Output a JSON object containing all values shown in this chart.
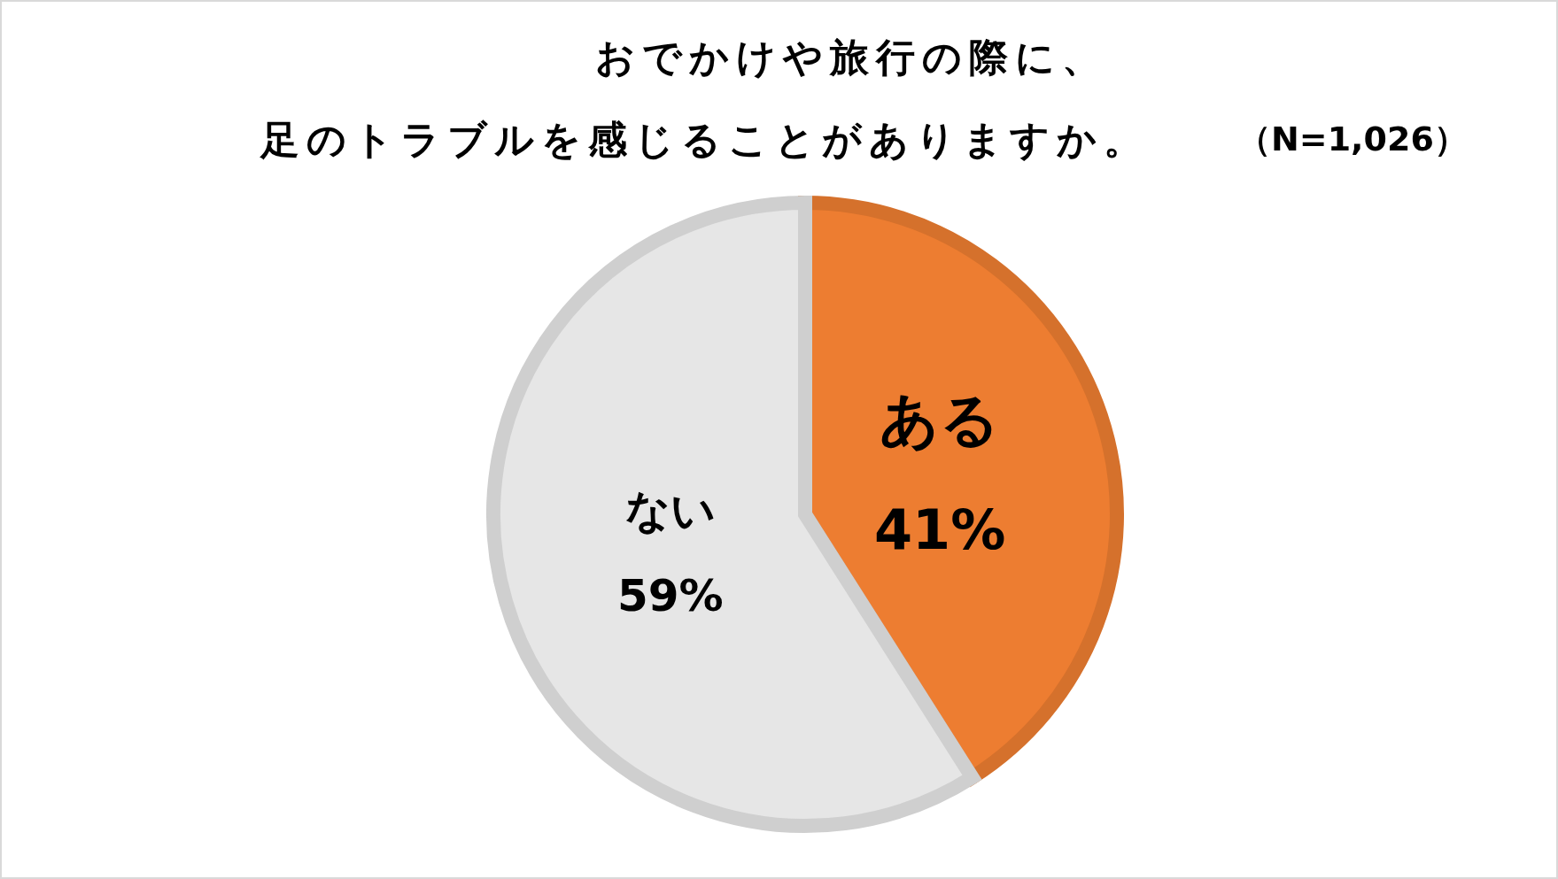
{
  "chart_data": {
    "type": "pie",
    "title": "おでかけや旅行の際に、",
    "subtitle": "足のトラブルを感じることがありますか。",
    "annotations": [
      "（N=1,026）"
    ],
    "categories": [
      "ある",
      "ない"
    ],
    "values": [
      41,
      59
    ],
    "value_labels": [
      "41%",
      "59%"
    ],
    "colors": [
      "#ed7d31",
      "#e6e6e6"
    ],
    "legend": false
  }
}
